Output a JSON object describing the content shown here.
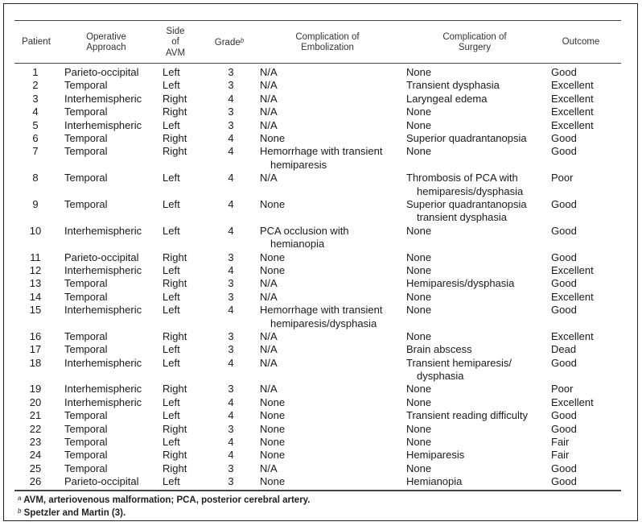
{
  "headers": {
    "patient": [
      "Patient"
    ],
    "approach": [
      "Operative",
      "Approach"
    ],
    "side": [
      "Side",
      "of",
      "AVM"
    ],
    "grade": "Grade",
    "grade_note": "b",
    "embolization": [
      "Complication of",
      "Embolization"
    ],
    "surgery": [
      "Complication of",
      "Surgery"
    ],
    "outcome": [
      "Outcome"
    ]
  },
  "rows": [
    [
      "1",
      "Parieto-occipital",
      "Left",
      "3",
      [
        "N/A"
      ],
      [
        "None"
      ],
      "Good"
    ],
    [
      "2",
      "Temporal",
      "Left",
      "3",
      [
        "N/A"
      ],
      [
        "Transient dysphasia"
      ],
      "Excellent"
    ],
    [
      "3",
      "Interhemispheric",
      "Right",
      "4",
      [
        "N/A"
      ],
      [
        "Laryngeal edema"
      ],
      "Excellent"
    ],
    [
      "4",
      "Temporal",
      "Right",
      "3",
      [
        "N/A"
      ],
      [
        "None"
      ],
      "Excellent"
    ],
    [
      "5",
      "Interhemispheric",
      "Left",
      "3",
      [
        "N/A"
      ],
      [
        "None"
      ],
      "Excellent"
    ],
    [
      "6",
      "Temporal",
      "Right",
      "4",
      [
        "None"
      ],
      [
        "Superior quadrantanopsia"
      ],
      "Good"
    ],
    [
      "7",
      "Temporal",
      "Right",
      "4",
      [
        "Hemorrhage with transient",
        "hemiparesis"
      ],
      [
        "None"
      ],
      "Good"
    ],
    [
      "8",
      "Temporal",
      "Left",
      "4",
      [
        "N/A"
      ],
      [
        "Thrombosis of PCA with",
        "hemiparesis/dysphasia"
      ],
      "Poor"
    ],
    [
      "9",
      "Temporal",
      "Left",
      "4",
      [
        "None"
      ],
      [
        "Superior quadrantanopsia",
        "transient dysphasia"
      ],
      "Good"
    ],
    [
      "10",
      "Interhemispheric",
      "Left",
      "4",
      [
        "PCA occlusion with",
        "hemianopia"
      ],
      [
        "None"
      ],
      "Good"
    ],
    [
      "11",
      "Parieto-occipital",
      "Right",
      "3",
      [
        "None"
      ],
      [
        "None"
      ],
      "Good"
    ],
    [
      "12",
      "Interhemispheric",
      "Left",
      "4",
      [
        "None"
      ],
      [
        "None"
      ],
      "Excellent"
    ],
    [
      "13",
      "Temporal",
      "Right",
      "3",
      [
        "N/A"
      ],
      [
        "Hemiparesis/dysphasia"
      ],
      "Good"
    ],
    [
      "14",
      "Temporal",
      "Left",
      "3",
      [
        "N/A"
      ],
      [
        "None"
      ],
      "Excellent"
    ],
    [
      "15",
      "Interhemispheric",
      "Left",
      "4",
      [
        "Hemorrhage with transient",
        "hemiparesis/dysphasia"
      ],
      [
        "None"
      ],
      "Good"
    ],
    [
      "16",
      "Temporal",
      "Right",
      "3",
      [
        "N/A"
      ],
      [
        "None"
      ],
      "Excellent"
    ],
    [
      "17",
      "Temporal",
      "Left",
      "3",
      [
        "N/A"
      ],
      [
        "Brain abscess"
      ],
      "Dead"
    ],
    [
      "18",
      "Interhemispheric",
      "Left",
      "4",
      [
        "N/A"
      ],
      [
        "Transient hemiparesis/",
        "dysphasia"
      ],
      "Good"
    ],
    [
      "19",
      "Interhemispheric",
      "Right",
      "3",
      [
        "N/A"
      ],
      [
        "None"
      ],
      "Poor"
    ],
    [
      "20",
      "Interhemispheric",
      "Left",
      "4",
      [
        "None"
      ],
      [
        "None"
      ],
      "Excellent"
    ],
    [
      "21",
      "Temporal",
      "Left",
      "4",
      [
        "None"
      ],
      [
        "Transient reading difficulty"
      ],
      "Good"
    ],
    [
      "22",
      "Temporal",
      "Right",
      "3",
      [
        "None"
      ],
      [
        "None"
      ],
      "Good"
    ],
    [
      "23",
      "Temporal",
      "Left",
      "4",
      [
        "None"
      ],
      [
        "None"
      ],
      "Fair"
    ],
    [
      "24",
      "Temporal",
      "Right",
      "4",
      [
        "None"
      ],
      [
        "Hemiparesis"
      ],
      "Fair"
    ],
    [
      "25",
      "Temporal",
      "Right",
      "3",
      [
        "N/A"
      ],
      [
        "None"
      ],
      "Good"
    ],
    [
      "26",
      "Parieto-occipital",
      "Left",
      "3",
      [
        "None"
      ],
      [
        "Hemianopia"
      ],
      "Good"
    ]
  ],
  "footnotes": [
    {
      "mark": "a",
      "text": "AVM, arteriovenous malformation; PCA, posterior cerebral artery."
    },
    {
      "mark": "b",
      "text": "Spetzler and Martin (3)."
    }
  ]
}
